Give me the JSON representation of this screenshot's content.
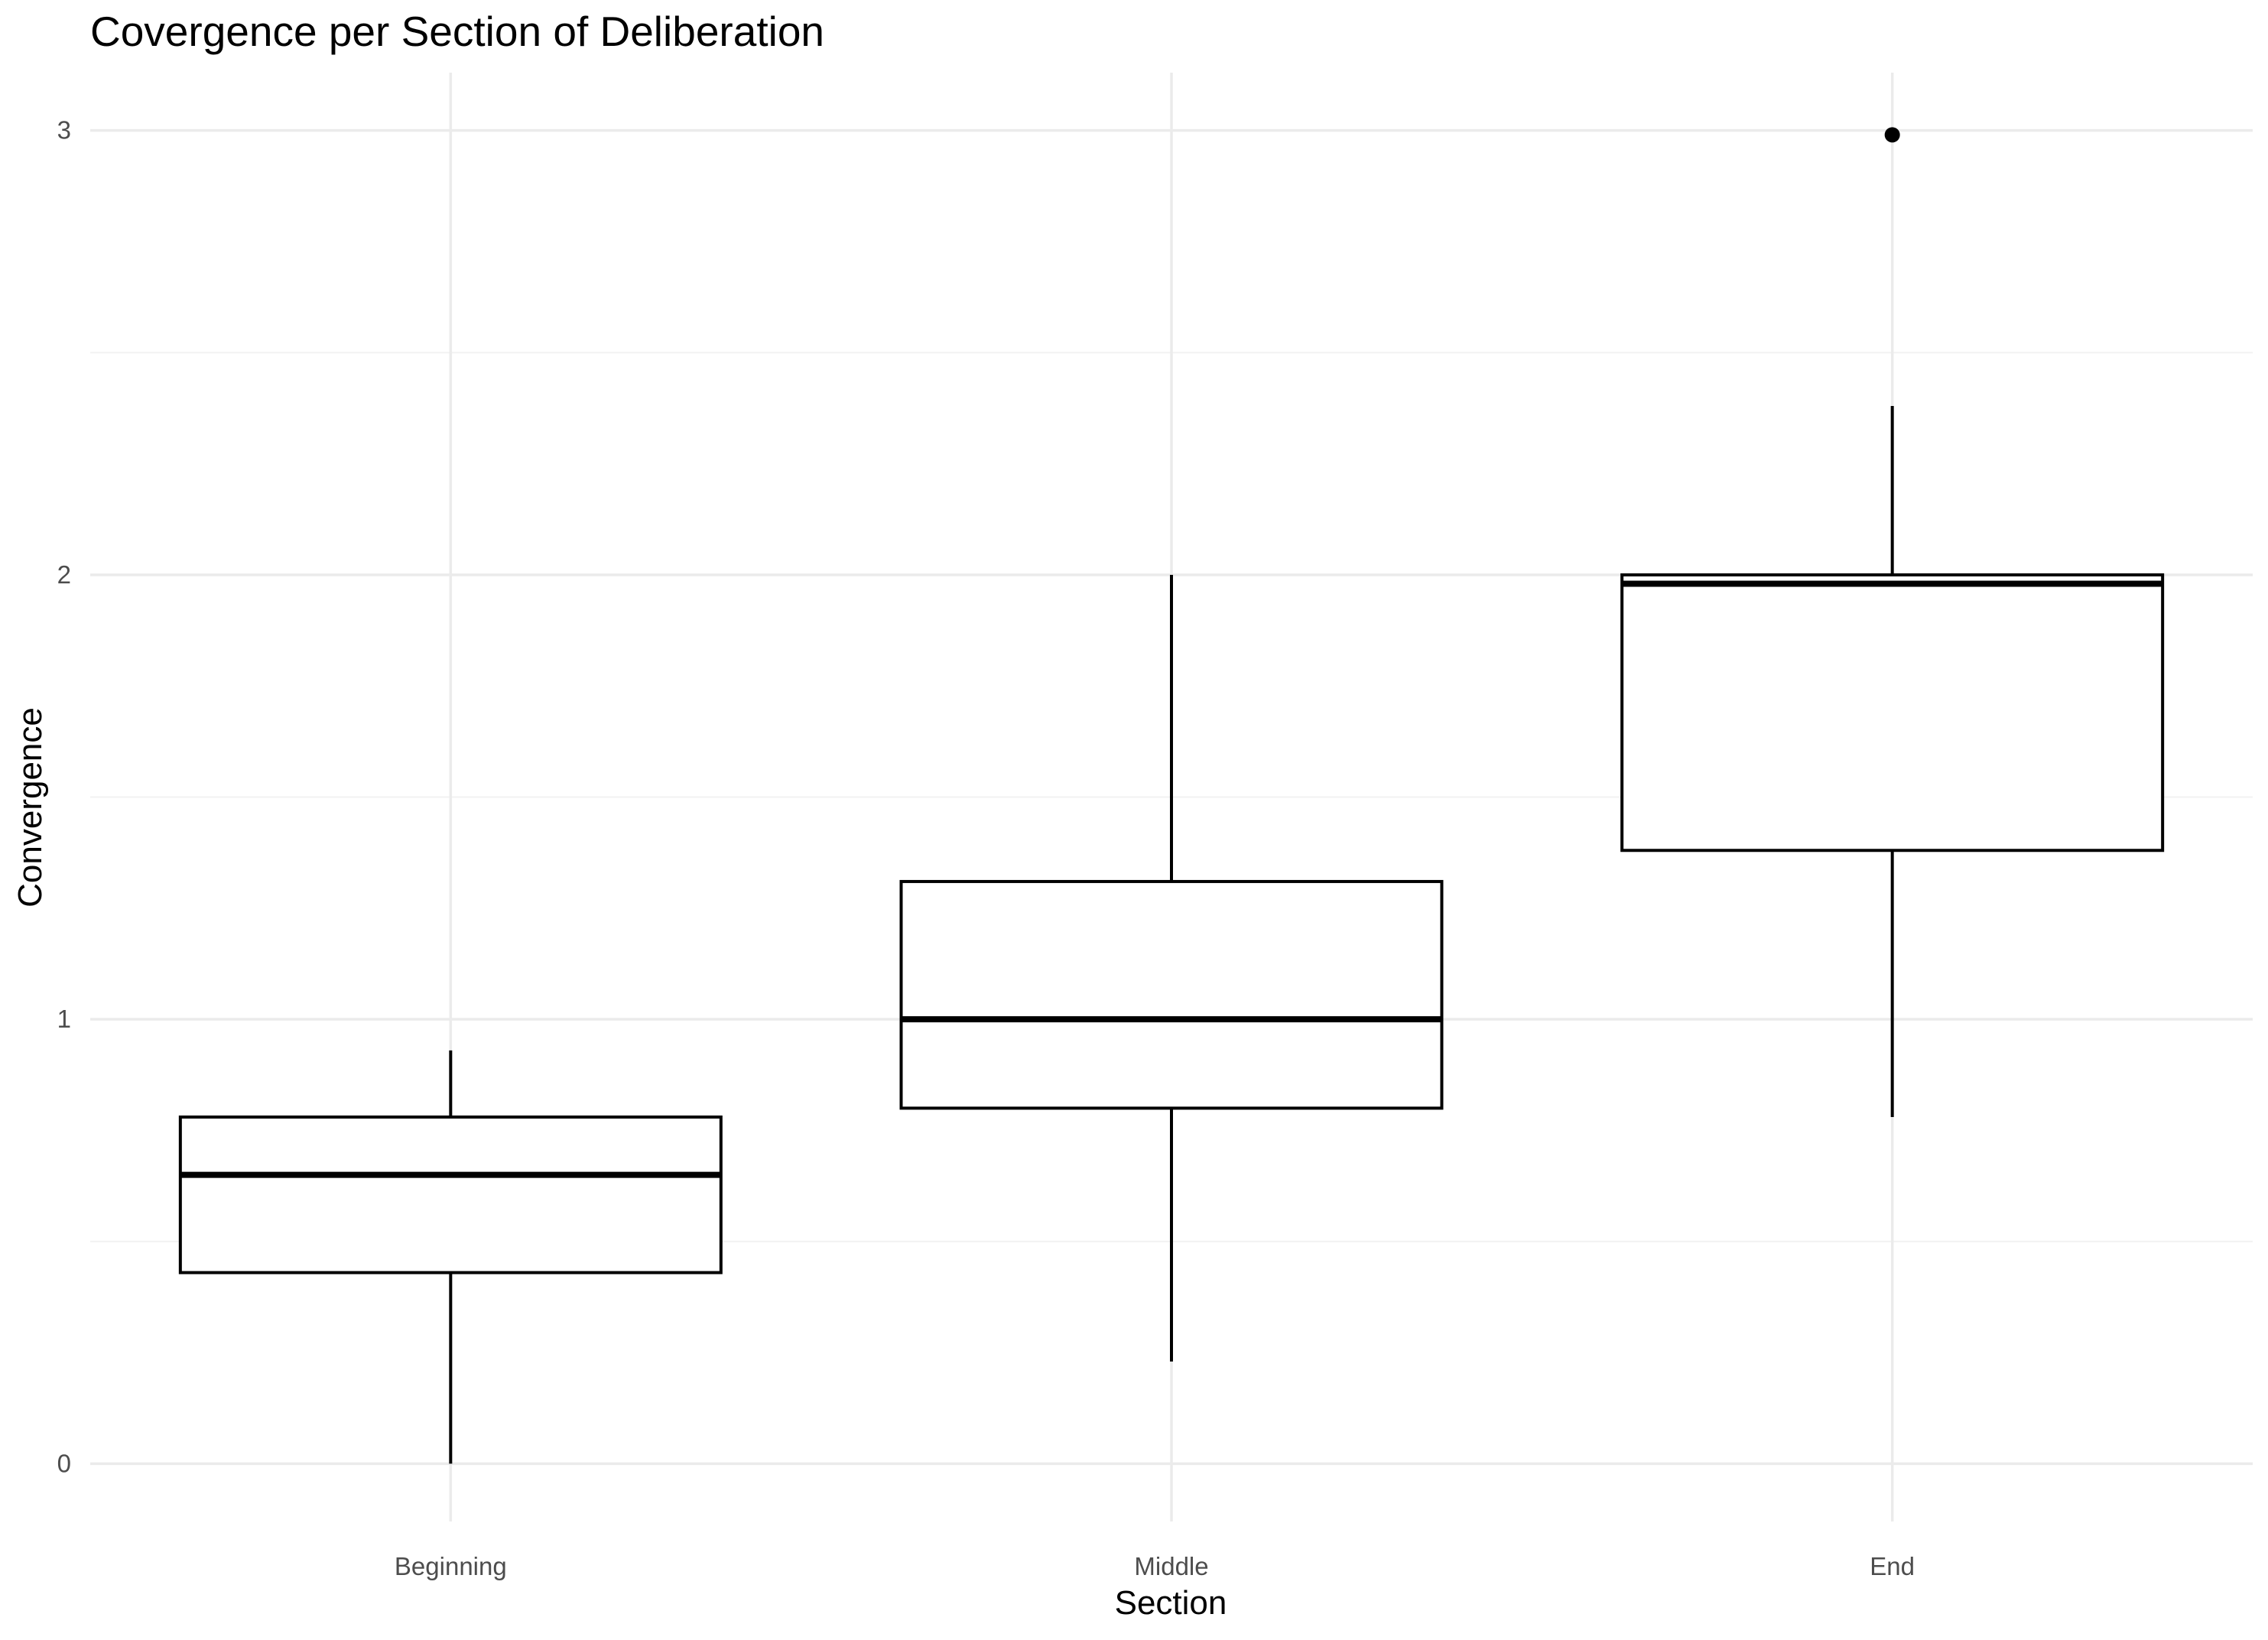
{
  "chart_data": {
    "type": "boxplot",
    "title": "Covergence per Section of Deliberation",
    "xlabel": "Section",
    "ylabel": "Convergence",
    "categories": [
      "Beginning",
      "Middle",
      "End"
    ],
    "ylim": [
      -0.13,
      3.13
    ],
    "yticks": [
      0,
      1,
      2,
      3
    ],
    "grid": true,
    "legend": "none",
    "boxes": [
      {
        "category": "Beginning",
        "whisker_low": 0.0,
        "q1": 0.43,
        "median": 0.65,
        "q3": 0.78,
        "whisker_high": 0.93,
        "outliers": []
      },
      {
        "category": "Middle",
        "whisker_low": 0.23,
        "q1": 0.8,
        "median": 1.0,
        "q3": 1.31,
        "whisker_high": 2.0,
        "outliers": []
      },
      {
        "category": "End",
        "whisker_low": 0.78,
        "q1": 1.38,
        "median": 1.98,
        "q3": 2.0,
        "whisker_high": 2.38,
        "outliers": [
          2.99
        ]
      }
    ]
  }
}
